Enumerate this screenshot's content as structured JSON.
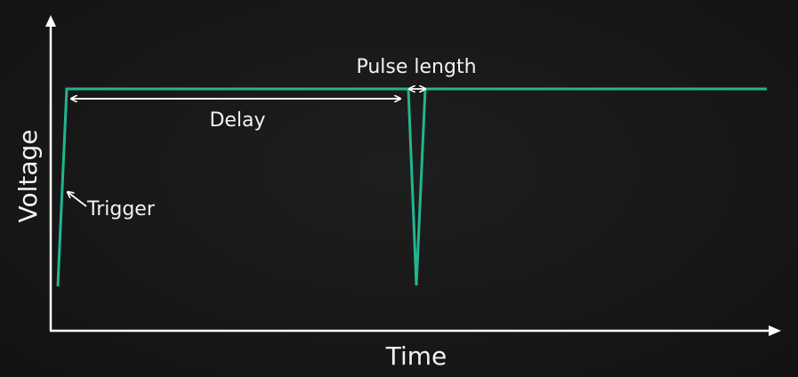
{
  "diagram": {
    "x_axis_label": "Time",
    "y_axis_label": "Voltage",
    "annotations": {
      "pulse_length": "Pulse length",
      "delay": "Delay",
      "trigger": "Trigger"
    },
    "colors": {
      "signal": "#22b590",
      "axes": "#ffffff",
      "text": "#f2f2f2",
      "background": "#1a1a1a"
    }
  }
}
